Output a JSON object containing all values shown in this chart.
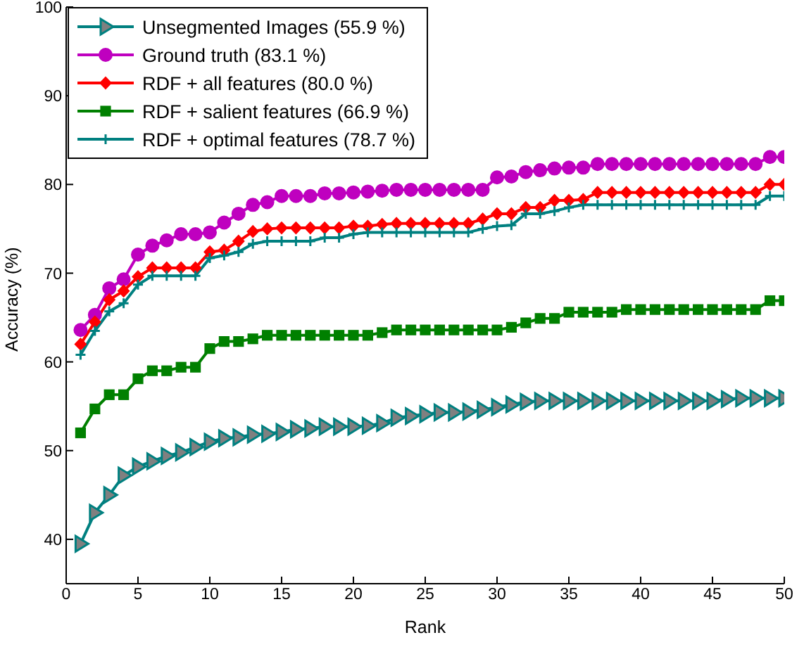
{
  "chart_data": {
    "type": "line",
    "xlabel": "Rank",
    "ylabel": "Accuracy (%)",
    "x": [
      1,
      2,
      3,
      4,
      5,
      6,
      7,
      8,
      9,
      10,
      11,
      12,
      13,
      14,
      15,
      16,
      17,
      18,
      19,
      20,
      21,
      22,
      23,
      24,
      25,
      26,
      27,
      28,
      29,
      30,
      31,
      32,
      33,
      34,
      35,
      36,
      37,
      38,
      39,
      40,
      41,
      42,
      43,
      44,
      45,
      46,
      47,
      48,
      49,
      50
    ],
    "series": [
      {
        "name": "Unsegmented Images (55.9 %)",
        "color": "#008080",
        "marker": "triangle",
        "values": [
          39.5,
          43,
          45,
          47.2,
          48.2,
          48.8,
          49.4,
          49.8,
          50.4,
          51,
          51.4,
          51.5,
          51.8,
          51.9,
          52.1,
          52.4,
          52.5,
          52.7,
          52.7,
          52.7,
          52.8,
          53.1,
          53.7,
          53.9,
          54.1,
          54.3,
          54.3,
          54.4,
          54.6,
          54.9,
          55.2,
          55.5,
          55.6,
          55.6,
          55.6,
          55.6,
          55.6,
          55.6,
          55.6,
          55.6,
          55.6,
          55.6,
          55.6,
          55.6,
          55.6,
          55.8,
          55.9,
          55.9,
          55.9,
          55.9
        ]
      },
      {
        "name": "Ground truth (83.1 %)",
        "color": "#bf00bf",
        "marker": "circle",
        "values": [
          63.6,
          65.3,
          68.3,
          69.3,
          72.1,
          73.1,
          73.7,
          74.4,
          74.4,
          74.6,
          75.7,
          76.7,
          77.7,
          78,
          78.7,
          78.7,
          78.7,
          79,
          79,
          79.1,
          79.2,
          79.3,
          79.4,
          79.4,
          79.4,
          79.4,
          79.4,
          79.4,
          79.4,
          80.8,
          80.9,
          81.4,
          81.6,
          81.8,
          81.9,
          81.9,
          82.3,
          82.3,
          82.3,
          82.3,
          82.3,
          82.3,
          82.3,
          82.3,
          82.3,
          82.3,
          82.3,
          82.3,
          83.1,
          83.1
        ]
      },
      {
        "name": "RDF + all features (80.0 %)",
        "color": "#ff0000",
        "marker": "diamond",
        "values": [
          62,
          64.5,
          67,
          68,
          69.6,
          70.6,
          70.6,
          70.6,
          70.6,
          72.4,
          72.6,
          73.6,
          74.7,
          75,
          75.1,
          75.1,
          75.1,
          75.1,
          75.1,
          75.3,
          75.3,
          75.5,
          75.6,
          75.6,
          75.6,
          75.6,
          75.6,
          75.6,
          76.1,
          76.7,
          76.7,
          77.4,
          77.4,
          78.2,
          78.2,
          78.3,
          79.1,
          79.1,
          79.1,
          79.1,
          79.1,
          79.1,
          79.1,
          79.1,
          79.1,
          79.1,
          79.1,
          79.1,
          80,
          80
        ]
      },
      {
        "name": "RDF + salient features (66.9 %)",
        "color": "#008000",
        "marker": "square",
        "values": [
          52,
          54.7,
          56.3,
          56.3,
          58.1,
          59,
          59,
          59.4,
          59.4,
          61.5,
          62.3,
          62.3,
          62.6,
          63,
          63,
          63,
          63,
          63,
          63,
          63,
          63,
          63.3,
          63.6,
          63.6,
          63.6,
          63.6,
          63.6,
          63.6,
          63.6,
          63.6,
          63.9,
          64.4,
          64.9,
          64.9,
          65.6,
          65.6,
          65.6,
          65.6,
          65.9,
          65.9,
          65.9,
          65.9,
          65.9,
          65.9,
          65.9,
          65.9,
          65.9,
          65.9,
          66.9,
          66.9
        ]
      },
      {
        "name": "RDF + optimal features (78.7 %)",
        "color": "#008080",
        "marker": "cross",
        "values": [
          60.8,
          63.5,
          65.7,
          66.6,
          68.7,
          69.7,
          69.7,
          69.7,
          69.7,
          71.7,
          72,
          72.4,
          73.3,
          73.6,
          73.6,
          73.6,
          73.6,
          74,
          74,
          74.4,
          74.6,
          74.6,
          74.6,
          74.6,
          74.6,
          74.6,
          74.6,
          74.6,
          75,
          75.3,
          75.4,
          76.7,
          76.7,
          77,
          77.4,
          77.7,
          77.7,
          77.7,
          77.7,
          77.7,
          77.7,
          77.7,
          77.7,
          77.7,
          77.7,
          77.7,
          77.7,
          77.7,
          78.7,
          78.7
        ]
      }
    ],
    "xlim": [
      0,
      50
    ],
    "xticks": [
      0,
      5,
      10,
      15,
      20,
      25,
      30,
      35,
      40,
      45,
      50
    ],
    "ylim": [
      35,
      100
    ],
    "yticks": [
      40,
      50,
      60,
      70,
      80,
      90,
      100
    ],
    "grid": false,
    "legend": "top left",
    "line_style": "solid"
  }
}
